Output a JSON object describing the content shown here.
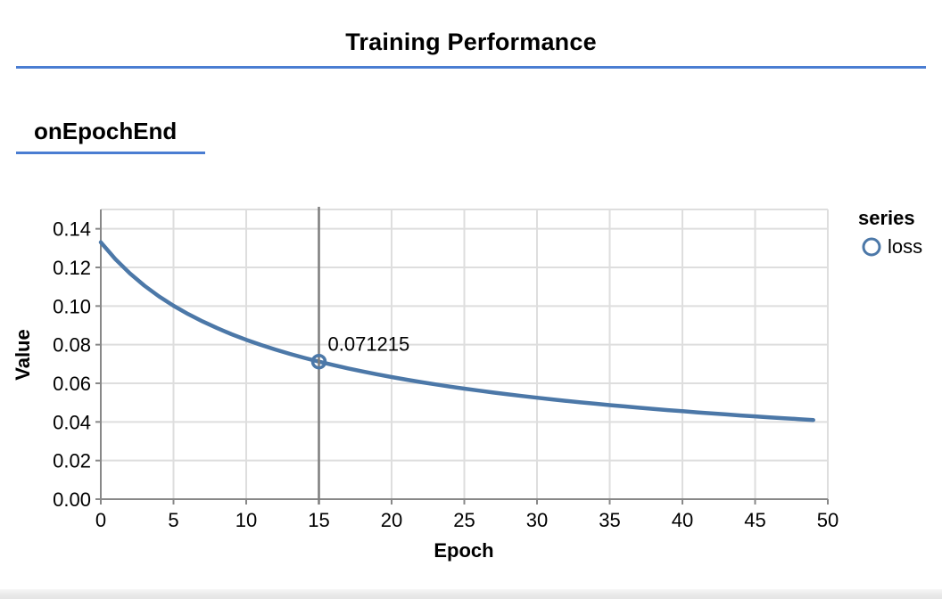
{
  "page": {
    "title": "Training Performance",
    "section_heading": "onEpochEnd"
  },
  "colors": {
    "accent_blue": "#4a7dd2",
    "series_blue": "#4c78a8",
    "grid": "#dedede",
    "axis": "#888888",
    "crosshair": "#7d7d7d"
  },
  "chart_data": {
    "type": "line",
    "title": "",
    "xlabel": "Epoch",
    "ylabel": "Value",
    "xlim": [
      0,
      50
    ],
    "ylim": [
      0,
      0.15
    ],
    "grid": true,
    "x_tick_labels": [
      "0",
      "5",
      "10",
      "15",
      "20",
      "25",
      "30",
      "35",
      "40",
      "45",
      "50"
    ],
    "y_tick_labels": [
      "0.00",
      "0.02",
      "0.04",
      "0.06",
      "0.08",
      "0.10",
      "0.12",
      "0.14"
    ],
    "legend": {
      "position": "top-right",
      "title": "series",
      "entries": [
        "loss"
      ]
    },
    "series": [
      {
        "name": "loss",
        "x": [
          0,
          1,
          2,
          3,
          4,
          5,
          6,
          7,
          8,
          9,
          10,
          11,
          12,
          13,
          14,
          15,
          16,
          17,
          18,
          19,
          20,
          21,
          22,
          23,
          24,
          25,
          26,
          27,
          28,
          29,
          30,
          31,
          32,
          33,
          34,
          35,
          36,
          37,
          38,
          39,
          40,
          41,
          42,
          43,
          44,
          45,
          46,
          47,
          48,
          49
        ],
        "values": [
          0.13303,
          0.12428,
          0.11689,
          0.11054,
          0.10502,
          0.10017,
          0.09588,
          0.09202,
          0.08855,
          0.0854,
          0.08252,
          0.0799,
          0.07747,
          0.07523,
          0.07315,
          0.071215,
          0.06941,
          0.06772,
          0.06613,
          0.06464,
          0.06323,
          0.0619,
          0.06064,
          0.05945,
          0.05831,
          0.05723,
          0.0562,
          0.05522,
          0.05428,
          0.05338,
          0.05252,
          0.05169,
          0.0509,
          0.05014,
          0.04941,
          0.0487,
          0.04803,
          0.04737,
          0.04674,
          0.04613,
          0.04554,
          0.04497,
          0.04441,
          0.04388,
          0.04336,
          0.04286,
          0.04237,
          0.0419,
          0.04144,
          0.04099
        ]
      }
    ],
    "highlight": {
      "series": "loss",
      "x": 15,
      "value": 0.071215,
      "label": "0.071215"
    }
  }
}
